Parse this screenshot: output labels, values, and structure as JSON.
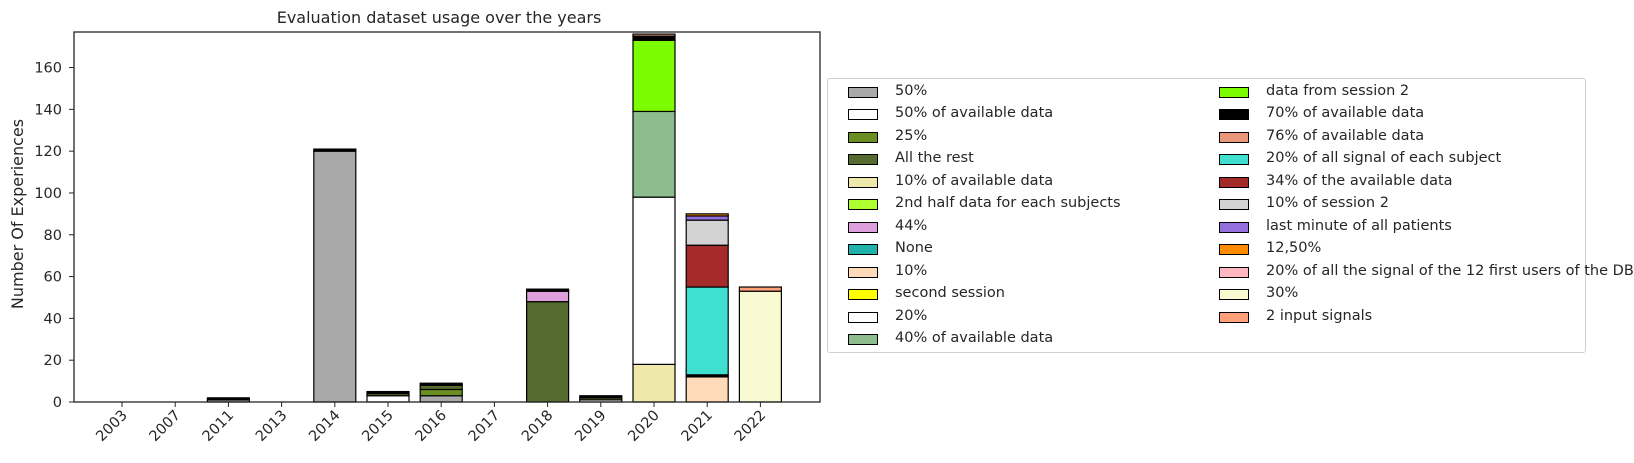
{
  "chart_data": {
    "type": "bar",
    "stacked": true,
    "title": "Evaluation dataset usage over the years",
    "xlabel": "",
    "ylabel": "Number Of Experiences",
    "ylim": [
      0,
      177
    ],
    "yticks": [
      0,
      20,
      40,
      60,
      80,
      100,
      120,
      140,
      160
    ],
    "grid": false,
    "legend_position": "right",
    "categories": [
      "2003",
      "2007",
      "2011",
      "2013",
      "2014",
      "2015",
      "2016",
      "2017",
      "2018",
      "2019",
      "2020",
      "2021",
      "2022"
    ],
    "series": [
      {
        "name": "50%",
        "color": "#a9a9a9",
        "values": [
          0,
          0,
          1,
          0,
          120,
          0,
          3,
          0,
          0,
          0,
          0,
          0,
          0
        ]
      },
      {
        "name": "50% of available data",
        "color": "#ffffff",
        "values": [
          0,
          0,
          0,
          0,
          0,
          3,
          0,
          0,
          0,
          1,
          0,
          0,
          0
        ]
      },
      {
        "name": "25%",
        "color": "#6b8e23",
        "values": [
          0,
          0,
          0,
          0,
          0,
          1,
          3,
          0,
          0,
          0,
          0,
          0,
          0
        ]
      },
      {
        "name": "All the rest",
        "color": "#556b2f",
        "values": [
          0,
          0,
          0,
          0,
          0,
          0,
          2,
          0,
          48,
          1,
          0,
          0,
          0
        ]
      },
      {
        "name": "10% of available data",
        "color": "#eee8aa",
        "values": [
          0,
          0,
          0,
          0,
          0,
          0,
          0,
          0,
          0,
          0,
          18,
          0,
          0
        ]
      },
      {
        "name": "2nd half data for each subjects",
        "color": "#adff2f",
        "values": [
          0,
          0,
          0,
          0,
          0,
          0,
          0,
          0,
          0,
          0,
          0,
          0,
          0
        ]
      },
      {
        "name": "44%",
        "color": "#dda0dd",
        "values": [
          0,
          0,
          0,
          0,
          0,
          0,
          0,
          0,
          5,
          0,
          0,
          0,
          0
        ]
      },
      {
        "name": "None",
        "color": "#20b2aa",
        "values": [
          0,
          0,
          0,
          0,
          0,
          0,
          0,
          0,
          0,
          0,
          0,
          0,
          0
        ]
      },
      {
        "name": "10%",
        "color": "#ffdab9",
        "values": [
          0,
          0,
          0,
          0,
          0,
          0,
          0,
          0,
          0,
          0,
          0,
          12,
          0
        ]
      },
      {
        "name": "second session",
        "color": "#ffff00",
        "values": [
          0,
          0,
          0,
          0,
          0,
          0,
          0,
          0,
          0,
          0,
          0,
          0,
          0
        ]
      },
      {
        "name": "20%",
        "color": "#ffffff",
        "values": [
          0,
          0,
          0,
          0,
          0,
          0,
          0,
          0,
          0,
          0,
          80,
          0,
          0
        ]
      },
      {
        "name": "40% of available data",
        "color": "#8fbc8f",
        "values": [
          0,
          0,
          0,
          0,
          0,
          0,
          0,
          0,
          0,
          0,
          41,
          0,
          0
        ]
      },
      {
        "name": "data from session 2",
        "color": "#7cfc00",
        "values": [
          0,
          0,
          0,
          0,
          0,
          0,
          0,
          0,
          0,
          0,
          34,
          0,
          0
        ]
      },
      {
        "name": "70% of available data",
        "color": "#000000",
        "values": [
          0,
          0,
          1,
          0,
          1,
          1,
          1,
          0,
          1,
          1,
          2,
          1,
          0
        ]
      },
      {
        "name": "76% of available data",
        "color": "#e9967a",
        "values": [
          0,
          0,
          0,
          0,
          0,
          0,
          0,
          0,
          0,
          0,
          1,
          0,
          0
        ]
      },
      {
        "name": "20% of all signal of each subject",
        "color": "#40e0d0",
        "values": [
          0,
          0,
          0,
          0,
          0,
          0,
          0,
          0,
          0,
          0,
          0,
          42,
          0
        ]
      },
      {
        "name": "34% of the available data",
        "color": "#a52a2a",
        "values": [
          0,
          0,
          0,
          0,
          0,
          0,
          0,
          0,
          0,
          0,
          0,
          20,
          0
        ]
      },
      {
        "name": "10% of session 2",
        "color": "#d3d3d3",
        "values": [
          0,
          0,
          0,
          0,
          0,
          0,
          0,
          0,
          0,
          0,
          0,
          12,
          0
        ]
      },
      {
        "name": "last minute of all patients",
        "color": "#9370db",
        "values": [
          0,
          0,
          0,
          0,
          0,
          0,
          0,
          0,
          0,
          0,
          0,
          2,
          0
        ]
      },
      {
        "name": "12,50%",
        "color": "#ff8c00",
        "values": [
          0,
          0,
          0,
          0,
          0,
          0,
          0,
          0,
          0,
          0,
          0,
          1,
          0
        ]
      },
      {
        "name": "20% of all the signal of the 12 first users of the DB",
        "color": "#ffb6c1",
        "values": [
          0,
          0,
          0,
          0,
          0,
          0,
          0,
          0,
          0,
          0,
          0,
          0,
          0
        ]
      },
      {
        "name": "30%",
        "color": "#fafad2",
        "values": [
          0,
          0,
          0,
          0,
          0,
          0,
          0,
          0,
          0,
          0,
          0,
          0,
          53
        ]
      },
      {
        "name": "2 input signals",
        "color": "#ffa07a",
        "values": [
          0,
          0,
          0,
          0,
          0,
          0,
          0,
          0,
          0,
          0,
          0,
          0,
          2
        ]
      }
    ]
  }
}
